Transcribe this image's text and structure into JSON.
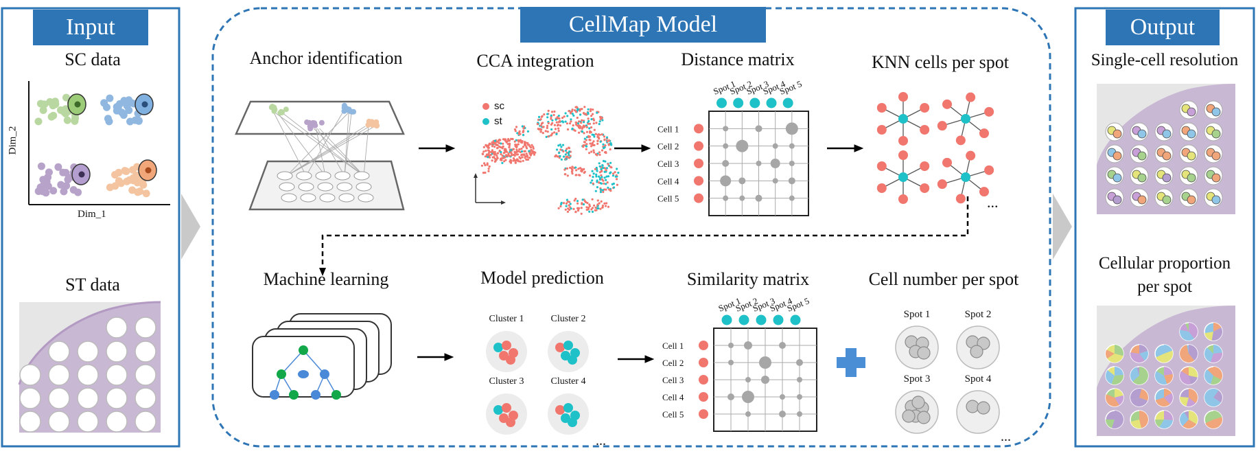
{
  "headers": {
    "input": "Input",
    "model": "CellMap Model",
    "output": "Output"
  },
  "input": {
    "sc_title": "SC data",
    "st_title": "ST data",
    "xlabel": "Dim_1",
    "ylabel": "Dim_2"
  },
  "steps": {
    "anchor": "Anchor identification",
    "cca": "CCA integration",
    "distance": "Distance matrix",
    "knn": "KNN cells per spot",
    "ml": "Machine learning",
    "prediction": "Model prediction",
    "similarity": "Similarity matrix",
    "cellnum": "Cell number per spot"
  },
  "cca_legend": [
    {
      "label": "sc",
      "color": "#f0766e"
    },
    {
      "label": "st",
      "color": "#1fc1c8"
    }
  ],
  "spots": [
    "Spot 1",
    "Spot 2",
    "Spot 3",
    "Spot 4",
    "Spot 5"
  ],
  "cells": [
    "Cell 1",
    "Cell 2",
    "Cell 3",
    "Cell 4",
    "Cell 5"
  ],
  "clusters": [
    "Cluster 1",
    "Cluster 2",
    "Cluster 3",
    "Cluster 4"
  ],
  "cellnum_spots": [
    "Spot 1",
    "Spot 2",
    "Spot 3",
    "Spot 4"
  ],
  "ellipsis": "...",
  "output": {
    "single_cell": "Single-cell resolution",
    "proportion_line1": "Cellular proportion",
    "proportion_line2": "per spot"
  },
  "colors": {
    "accent": "#2e75b6",
    "sc": "#f0766e",
    "st": "#1fc1c8",
    "tree_green": "#12a84a",
    "tree_blue": "#4a89d8",
    "plus": "#4a8fd6"
  }
}
